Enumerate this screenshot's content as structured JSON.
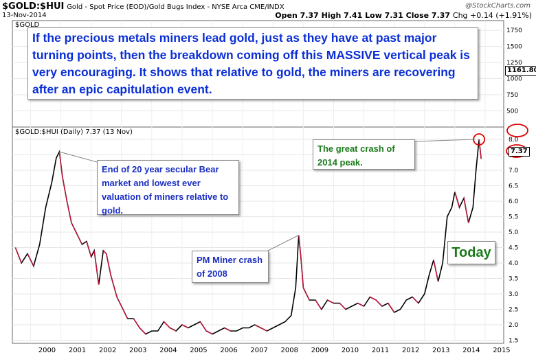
{
  "header": {
    "symbol": "$GOLD:$HUI",
    "description": "Gold - Spot Price (EOD)/Gold Bugs Index - NYSE Arca CME/INDX",
    "date": "13-Nov-2014",
    "brand": "@StockCharts.com",
    "open": "Open 7.37",
    "high": "High 7.41",
    "low": "Low 7.31",
    "close": "Close 7.37",
    "chg": "Chg +0.14 (+1.91%)"
  },
  "upper_panel": {
    "label": "$GOLD",
    "price_tag": "1161.80",
    "note": "If the precious metals miners lead gold, just as they have at past major turning points, then the breakdown coming off this MASSIVE vertical peak is very encouraging.  It shows that relative to gold, the miners are recovering after an epic capitulation event."
  },
  "lower_panel": {
    "label": "$GOLD:$HUI (Daily) 7.37 (13 Nov)",
    "price_tag": "7.37",
    "callout_2001": "End of 20 year secular Bear market and lowest ever valuation of miners relative to gold.",
    "callout_2008": "PM Miner crash of 2008",
    "callout_2014": "The great crash of 2014 peak.",
    "today": "Today"
  },
  "colors": {
    "price_line": "#000000",
    "down_line": "#d0103a",
    "annotation_blue": "#1a2ec2",
    "annotation_green": "#1a7a1a",
    "circle": "#e00000"
  },
  "chart_data": [
    {
      "type": "line",
      "title": "$GOLD",
      "y_ticks": [
        500,
        750,
        1000,
        1250,
        1500,
        1750
      ],
      "ylim": [
        250,
        1900
      ],
      "last_value": 1161.8
    },
    {
      "type": "line",
      "title": "$GOLD:$HUI (Daily) 7.37 (13 Nov)",
      "x_ticks": [
        "2000",
        "2001",
        "2002",
        "2003",
        "2004",
        "2005",
        "2006",
        "2007",
        "2008",
        "2009",
        "2010",
        "2011",
        "2012",
        "2013",
        "2014",
        "2015"
      ],
      "y_ticks": [
        1.5,
        2.0,
        2.5,
        3.0,
        3.5,
        4.0,
        4.5,
        5.0,
        5.5,
        6.0,
        6.5,
        7.0,
        7.5,
        8.0
      ],
      "ylim": [
        1.4,
        8.4
      ],
      "series": [
        {
          "x": [
            1999.5,
            1999.7,
            1999.9,
            2000.1,
            2000.3,
            2000.5,
            2000.7,
            2000.85,
            2000.95,
            2001.05,
            2001.2,
            2001.35,
            2001.5,
            2001.7,
            2001.85,
            2002.0,
            2002.1,
            2002.25,
            2002.4,
            2002.5,
            2002.65,
            2002.85,
            2003.0,
            2003.2,
            2003.4,
            2003.6,
            2003.8,
            2004.0,
            2004.2,
            2004.4,
            2004.6,
            2004.8,
            2005.0,
            2005.2,
            2005.4,
            2005.6,
            2005.8,
            2006.0,
            2006.2,
            2006.4,
            2006.6,
            2006.8,
            2007.0,
            2007.2,
            2007.4,
            2007.6,
            2007.8,
            2008.0,
            2008.2,
            2008.4,
            2008.6,
            2008.75,
            2008.85,
            2008.92,
            2009.0,
            2009.2,
            2009.4,
            2009.6,
            2009.8,
            2010.0,
            2010.2,
            2010.4,
            2010.6,
            2010.8,
            2011.0,
            2011.2,
            2011.4,
            2011.6,
            2011.8,
            2012.0,
            2012.2,
            2012.4,
            2012.6,
            2012.8,
            2013.0,
            2013.15,
            2013.3,
            2013.45,
            2013.6,
            2013.75,
            2013.9,
            2014.0,
            2014.15,
            2014.3,
            2014.45,
            2014.6,
            2014.7,
            2014.8,
            2014.87
          ],
          "values": [
            4.5,
            4.0,
            4.3,
            3.9,
            4.6,
            5.8,
            6.6,
            7.4,
            7.6,
            6.8,
            6.0,
            5.3,
            5.0,
            4.6,
            4.7,
            4.2,
            4.4,
            3.3,
            4.4,
            4.3,
            3.6,
            2.9,
            2.6,
            2.2,
            2.2,
            1.9,
            1.7,
            1.8,
            1.8,
            2.1,
            1.9,
            1.8,
            2.0,
            1.9,
            2.0,
            2.1,
            1.8,
            1.7,
            1.8,
            1.9,
            1.8,
            1.8,
            1.9,
            1.9,
            2.0,
            1.9,
            1.8,
            1.9,
            2.0,
            2.1,
            2.3,
            3.2,
            4.9,
            4.2,
            3.2,
            2.8,
            2.8,
            2.5,
            2.8,
            2.7,
            2.7,
            2.5,
            2.6,
            2.7,
            2.6,
            2.9,
            2.8,
            2.6,
            2.7,
            2.4,
            2.5,
            2.8,
            2.9,
            2.7,
            3.0,
            3.6,
            4.1,
            3.4,
            4.0,
            5.5,
            5.8,
            6.3,
            5.8,
            6.1,
            5.3,
            5.8,
            7.0,
            8.0,
            7.37
          ]
        }
      ]
    }
  ]
}
